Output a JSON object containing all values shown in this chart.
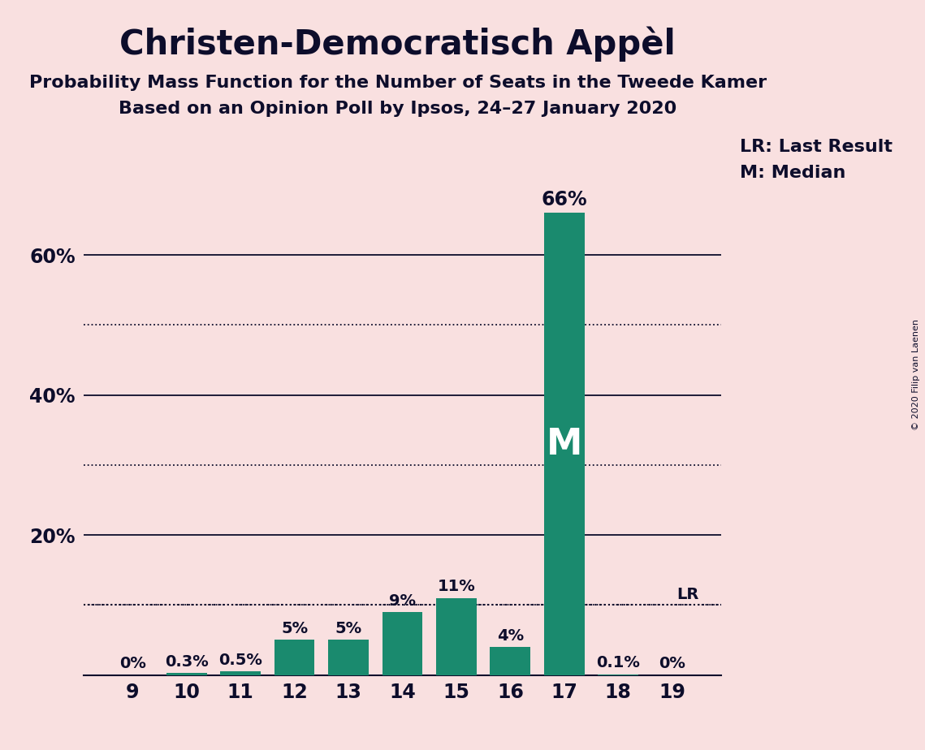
{
  "title": "Christen-Democratisch Appèl",
  "subtitle1": "Probability Mass Function for the Number of Seats in the Tweede Kamer",
  "subtitle2": "Based on an Opinion Poll by Ipsos, 24–27 January 2020",
  "copyright": "© 2020 Filip van Laenen",
  "seats": [
    9,
    10,
    11,
    12,
    13,
    14,
    15,
    16,
    17,
    18,
    19
  ],
  "probabilities": [
    0.0,
    0.3,
    0.5,
    5.0,
    5.0,
    9.0,
    11.0,
    4.0,
    66.0,
    0.1,
    0.0
  ],
  "bar_color": "#1a8a6e",
  "bar_labels": [
    "0%",
    "0.3%",
    "0.5%",
    "5%",
    "5%",
    "9%",
    "11%",
    "4%",
    "66%",
    "0.1%",
    "0%"
  ],
  "last_result_pct": 10.0,
  "last_result_label": "LR",
  "median_seat": 17,
  "background_color": "#f9e0e0",
  "title_color": "#0d0d2b",
  "bar_label_color": "#0d0d2b",
  "median_label_color": "#ffffff",
  "solid_grid_lines": [
    0,
    20,
    40,
    60
  ],
  "dotted_grid_lines": [
    10,
    30,
    50
  ],
  "ylim": [
    0,
    75
  ],
  "ytick_labels": [
    "",
    "20%",
    "40%",
    "60%"
  ],
  "legend_lr": "LR: Last Result",
  "legend_m": "M: Median",
  "title_fontsize": 30,
  "subtitle_fontsize": 16,
  "tick_fontsize": 17,
  "bar_label_fontsize": 14,
  "bar_label_fontsize_large": 17,
  "median_fontsize": 32,
  "legend_fontsize": 16
}
